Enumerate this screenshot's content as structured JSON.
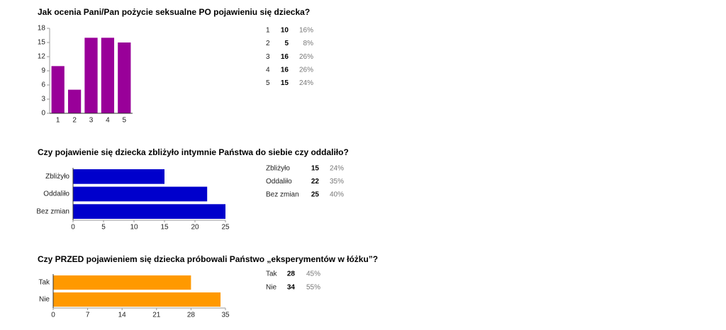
{
  "chart_data": [
    {
      "type": "bar",
      "orientation": "vertical",
      "title": "Jak ocenia Pani/Pan pożycie seksualne PO pojawieniu się dziecka?",
      "categories": [
        "1",
        "2",
        "3",
        "4",
        "5"
      ],
      "values": [
        10,
        5,
        16,
        16,
        15
      ],
      "percent_labels": [
        "16%",
        "8%",
        "26%",
        "26%",
        "24%"
      ],
      "color": "#990099",
      "ylim": [
        0,
        18
      ],
      "yticks": [
        0,
        3,
        6,
        9,
        12,
        15,
        18
      ]
    },
    {
      "type": "bar",
      "orientation": "horizontal",
      "title": "Czy pojawienie się dziecka zbliżyło intymnie Państwa do siebie czy oddaliło?",
      "categories": [
        "Zbliżyło",
        "Oddaliło",
        "Bez zmian"
      ],
      "values": [
        15,
        22,
        25
      ],
      "percent_labels": [
        "24%",
        "35%",
        "40%"
      ],
      "color": "#0000cc",
      "xlim": [
        0,
        25
      ],
      "xticks": [
        0,
        5,
        10,
        15,
        20,
        25
      ]
    },
    {
      "type": "bar",
      "orientation": "horizontal",
      "title": "Czy PRZED pojawieniem się dziecka próbowali Państwo „eksperymentów w łóżku”?",
      "categories": [
        "Tak",
        "Nie"
      ],
      "values": [
        28,
        34
      ],
      "percent_labels": [
        "45%",
        "55%"
      ],
      "color": "#ff9900",
      "xlim": [
        0,
        35
      ],
      "xticks": [
        0,
        7,
        14,
        21,
        28,
        35
      ]
    }
  ]
}
